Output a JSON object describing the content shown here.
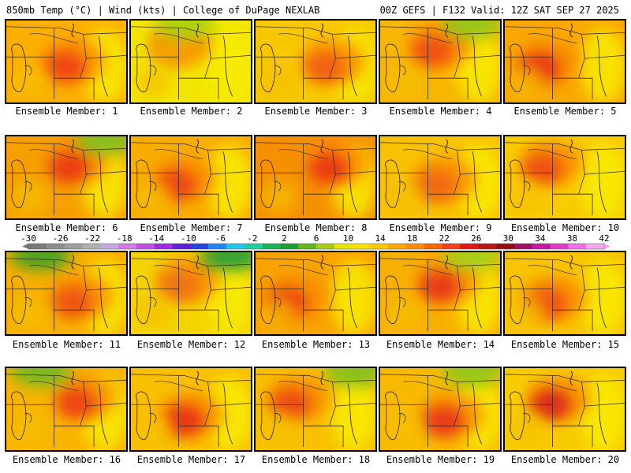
{
  "header": {
    "left": "850mb Temp (°C) | Wind (kts) | College of DuPage NEXLAB",
    "right": "00Z GEFS | F132 Valid: 12Z SAT SEP 27 2025"
  },
  "label_prefix": "Ensemble Member:",
  "members": [
    {
      "id": 1,
      "label": "Ensemble Member: 1",
      "base": "#fbb000",
      "hot": "#f03c14",
      "cool": null
    },
    {
      "id": 2,
      "label": "Ensemble Member: 2",
      "base": "#f2e600",
      "hot": "#f4a000",
      "cool": "#a6d60a"
    },
    {
      "id": 3,
      "label": "Ensemble Member: 3",
      "base": "#f7c800",
      "hot": "#f25a12",
      "cool": null
    },
    {
      "id": 4,
      "label": "Ensemble Member: 4",
      "base": "#f7b600",
      "hot": "#f04a14",
      "cool": "#8cc81e"
    },
    {
      "id": 5,
      "label": "Ensemble Member: 5",
      "base": "#f8a800",
      "hot": "#e8281a",
      "cool": null
    },
    {
      "id": 6,
      "label": "Ensemble Member: 6",
      "base": "#f5a000",
      "hot": "#ea3418",
      "cool": "#7cc020"
    },
    {
      "id": 7,
      "label": "Ensemble Member: 7",
      "base": "#f8ae00",
      "hot": "#ec3c16",
      "cool": null
    },
    {
      "id": 8,
      "label": "Ensemble Member: 8",
      "base": "#f59000",
      "hot": "#ea3218",
      "cool": null
    },
    {
      "id": 9,
      "label": "Ensemble Member: 9",
      "base": "#f8c200",
      "hot": "#f06418",
      "cool": null
    },
    {
      "id": 10,
      "label": "Ensemble Member: 10",
      "base": "#f8cc00",
      "hot": "#ee4a16",
      "cool": null
    },
    {
      "id": 11,
      "label": "Ensemble Member: 11",
      "base": "#f7b000",
      "hot": "#ee5018",
      "cool": "#3ca028"
    },
    {
      "id": 12,
      "label": "Ensemble Member: 12",
      "base": "#f4d400",
      "hot": "#f07018",
      "cool": "#1e9a3c"
    },
    {
      "id": 13,
      "label": "Ensemble Member: 13",
      "base": "#f8a400",
      "hot": "#ea3018",
      "cool": null
    },
    {
      "id": 14,
      "label": "Ensemble Member: 14",
      "base": "#f8b000",
      "hot": "#e8301a",
      "cool": "#a0d21a"
    },
    {
      "id": 15,
      "label": "Ensemble Member: 15",
      "base": "#f8c400",
      "hot": "#f04a16",
      "cool": null
    },
    {
      "id": 16,
      "label": "Ensemble Member: 16",
      "base": "#f8b400",
      "hot": "#ec3c16",
      "cool": "#6cb828"
    },
    {
      "id": 17,
      "label": "Ensemble Member: 17",
      "base": "#f8c000",
      "hot": "#e82c18",
      "cool": null
    },
    {
      "id": 18,
      "label": "Ensemble Member: 18",
      "base": "#f8c000",
      "hot": "#ec4416",
      "cool": "#7cc020"
    },
    {
      "id": 19,
      "label": "Ensemble Member: 19",
      "base": "#f8ba00",
      "hot": "#e8301a",
      "cool": "#8cc81e"
    },
    {
      "id": 20,
      "label": "Ensemble Member: 20",
      "base": "#f8cc00",
      "hot": "#d8201c",
      "cool": null
    }
  ],
  "colorbar": {
    "labels": [
      "-30",
      "-26",
      "-22",
      "-18",
      "-14",
      "-10",
      "-6",
      "-2",
      "2",
      "6",
      "10",
      "14",
      "18",
      "22",
      "26",
      "30",
      "34",
      "38",
      "42"
    ],
    "colors": [
      "#7a7a7a",
      "#8c8c8c",
      "#9e9e9e",
      "#b0b0b0",
      "#c6a8e0",
      "#d27ae6",
      "#c050e0",
      "#9a2ee0",
      "#6020d8",
      "#2840e0",
      "#1e88f0",
      "#22c8f0",
      "#1ed2a0",
      "#18b45a",
      "#1ea030",
      "#64b41e",
      "#a6cc14",
      "#e6e600",
      "#ffe000",
      "#ffc800",
      "#ffa800",
      "#ff8c00",
      "#ff6400",
      "#f44018",
      "#e01818",
      "#b81818",
      "#901010",
      "#a01060",
      "#c81aa0",
      "#e03cc8",
      "#f070e0",
      "#f8a8f0"
    ]
  }
}
